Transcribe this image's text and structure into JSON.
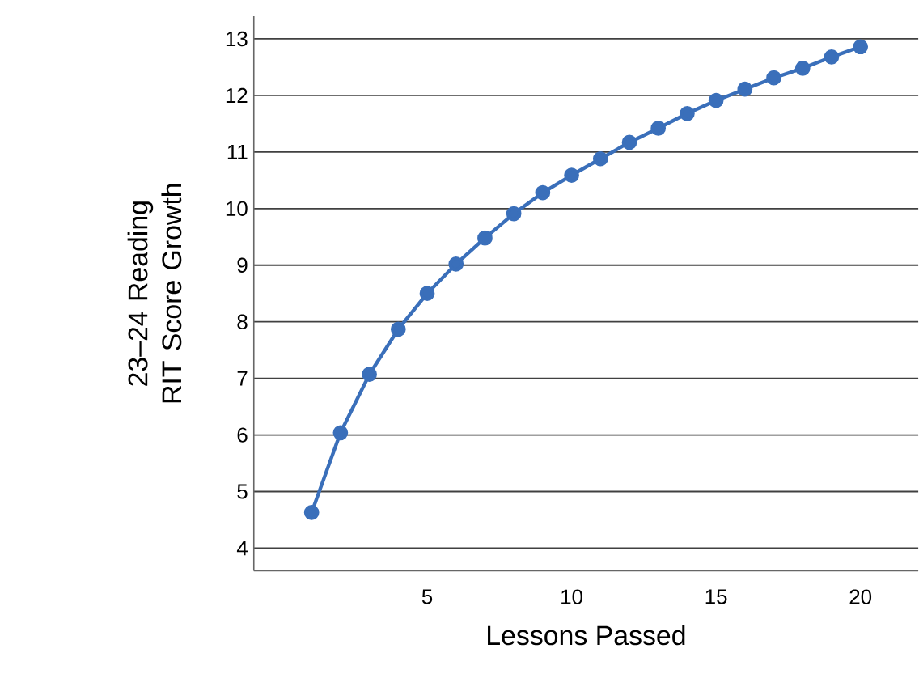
{
  "chart_data": {
    "type": "line",
    "xlabel": "Lessons Passed",
    "ylabel": "23–24 Reading RIT Score Growth",
    "x": [
      1,
      2,
      3,
      4,
      5,
      6,
      7,
      8,
      9,
      10,
      11,
      12,
      13,
      14,
      15,
      16,
      17,
      18,
      19,
      20
    ],
    "series": [
      {
        "color": "#3a6fba",
        "values": [
          4.63,
          6.04,
          7.07,
          7.87,
          8.5,
          9.02,
          9.48,
          9.91,
          10.28,
          10.59,
          10.88,
          11.17,
          11.42,
          11.68,
          11.91,
          12.11,
          12.31,
          12.48,
          12.68,
          12.86
        ]
      }
    ],
    "xlim": [
      -1,
      22
    ],
    "xticks": [
      5,
      10,
      15,
      20
    ],
    "ylim": [
      3.6,
      13.4
    ],
    "yticks": [
      4,
      5,
      6,
      7,
      8,
      9,
      10,
      11,
      12,
      13
    ],
    "grid": "y",
    "marker": "circle",
    "line_style": "solid"
  }
}
